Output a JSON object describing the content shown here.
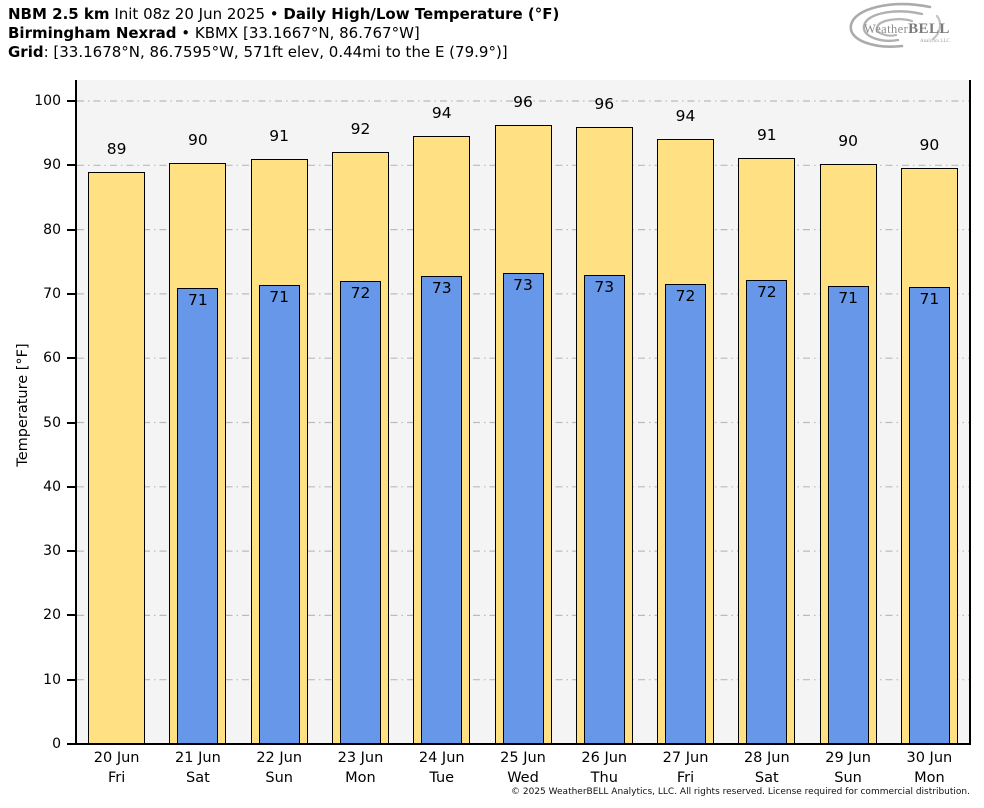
{
  "header": {
    "line1_model": "NBM 2.5 km",
    "line1_init": " Init 08z 20 Jun 2025 • ",
    "line1_title": "Daily High/Low Temperature (°F)",
    "line2_station": "Birmingham Nexrad",
    "line2_detail": " • KBMX [33.1667°N, 86.767°W]",
    "line3_label": "Grid",
    "line3_detail": ": [33.1678°N, 86.7595°W, 571ft elev, 0.44mi to the E (79.9°)]"
  },
  "logo": {
    "brand_weather": "Weather",
    "brand_bell": "BELL",
    "subtitle": "Analytics LLC"
  },
  "footer": {
    "copyright": "© 2025 WeatherBELL Analytics, LLC. All rights reserved. License required for commercial distribution."
  },
  "chart_data": {
    "type": "bar",
    "title": "NBM 2.5 km Init 08z 20 Jun 2025 • Daily High/Low Temperature (°F)",
    "ylabel": "Temperature [°F]",
    "ylim": [
      0,
      103
    ],
    "yticks": [
      0,
      10,
      20,
      30,
      40,
      50,
      60,
      70,
      80,
      90,
      100
    ],
    "grid": "horizontal-dashdot",
    "legend_position": "none",
    "categories": [
      {
        "date": "20 Jun",
        "day": "Fri"
      },
      {
        "date": "21 Jun",
        "day": "Sat"
      },
      {
        "date": "22 Jun",
        "day": "Sun"
      },
      {
        "date": "23 Jun",
        "day": "Mon"
      },
      {
        "date": "24 Jun",
        "day": "Tue"
      },
      {
        "date": "25 Jun",
        "day": "Wed"
      },
      {
        "date": "26 Jun",
        "day": "Thu"
      },
      {
        "date": "27 Jun",
        "day": "Fri"
      },
      {
        "date": "28 Jun",
        "day": "Sat"
      },
      {
        "date": "29 Jun",
        "day": "Sun"
      },
      {
        "date": "30 Jun",
        "day": "Mon"
      }
    ],
    "series": [
      {
        "name": "Daily High",
        "color": "#ffe083",
        "values": [
          89,
          90,
          91,
          92,
          94,
          96,
          96,
          94,
          91,
          90,
          90
        ],
        "values_exact": [
          88.9,
          90.4,
          91.0,
          92.0,
          94.5,
          96.2,
          96.0,
          94.1,
          91.1,
          90.2,
          89.6
        ]
      },
      {
        "name": "Daily Low",
        "color": "#6697e8",
        "values": [
          null,
          71,
          71,
          72,
          73,
          73,
          73,
          72,
          72,
          71,
          71
        ],
        "values_exact": [
          null,
          70.9,
          71.4,
          72.0,
          72.8,
          73.3,
          73.0,
          71.6,
          72.1,
          71.3,
          71.1
        ]
      }
    ],
    "colors": {
      "plot_background": "#f4f4f4",
      "gridline": "#bbbbbb",
      "bar_border": "#000000",
      "high_bar": "#ffe083",
      "low_bar": "#6697e8"
    }
  }
}
